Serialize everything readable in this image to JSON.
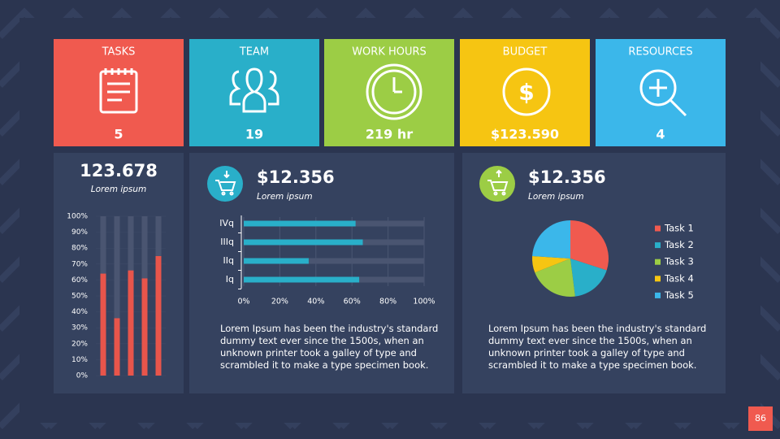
{
  "tiles": [
    {
      "title": "TASKS",
      "value": "5",
      "color": "#f05a4f"
    },
    {
      "title": "TEAM",
      "value": "19",
      "color": "#29afc9"
    },
    {
      "title": "WORK HOURS",
      "value": "219 hr",
      "color": "#9ccd45"
    },
    {
      "title": "BUDGET",
      "value": "$123.590",
      "color": "#f6c512"
    },
    {
      "title": "RESOURCES",
      "value": "4",
      "color": "#3bb7ea"
    }
  ],
  "summary": {
    "value": "123.678",
    "caption": "Lorem ipsum"
  },
  "panels": [
    {
      "value": "$12.356",
      "caption": "Lorem ipsum",
      "text": "Lorem Ipsum has been the industry's standard dummy text ever since the 1500s, when an unknown printer took a galley of type and scrambled it to make a type specimen book."
    },
    {
      "value": "$12.356",
      "caption": "Lorem ipsum",
      "text": "Lorem Ipsum has been the industry's standard dummy text ever since the 1500s, when an unknown printer took a galley of type and scrambled it to make a type specimen book."
    }
  ],
  "page_number": "86",
  "chart_data": [
    {
      "type": "bar",
      "orientation": "vertical",
      "values": [
        64,
        36,
        66,
        61,
        75
      ],
      "color": "#e8554b",
      "ylim": [
        0,
        100
      ],
      "yticks": [
        {
          "value": 0,
          "label": "0%"
        },
        {
          "value": 10,
          "label": "10%"
        },
        {
          "value": 20,
          "label": "20%"
        },
        {
          "value": 30,
          "label": "30%"
        },
        {
          "value": 40,
          "label": "40%"
        },
        {
          "value": 50,
          "label": "50%"
        },
        {
          "value": 60,
          "label": "60%"
        },
        {
          "value": 70,
          "label": "70%"
        },
        {
          "value": 80,
          "label": "80%"
        },
        {
          "value": 90,
          "label": "90%"
        },
        {
          "value": 100,
          "label": "100%"
        }
      ]
    },
    {
      "type": "bar",
      "orientation": "horizontal",
      "categories": [
        "IVq",
        "IIIq",
        "IIq",
        "Iq"
      ],
      "values": [
        62,
        66,
        36,
        64
      ],
      "color": "#29afc9",
      "xlim": [
        0,
        100
      ],
      "xticks": [
        {
          "value": 0,
          "label": "0%"
        },
        {
          "value": 20,
          "label": "20%"
        },
        {
          "value": 40,
          "label": "40%"
        },
        {
          "value": 60,
          "label": "60%"
        },
        {
          "value": 80,
          "label": "80%"
        },
        {
          "value": 100,
          "label": "100%"
        }
      ],
      "grid": true
    },
    {
      "type": "pie",
      "categories": [
        "Task 1",
        "Task 2",
        "Task 3",
        "Task 4",
        "Task 5"
      ],
      "values": [
        30,
        18,
        21,
        7,
        24
      ],
      "colors": [
        "#f05a4f",
        "#29afc9",
        "#9ccd45",
        "#f6c512",
        "#3bb7ea"
      ]
    }
  ]
}
